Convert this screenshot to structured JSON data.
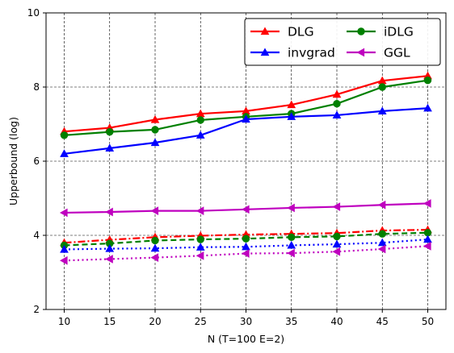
{
  "chart_data": {
    "type": "line",
    "title": "",
    "xlabel": "N (T=100 E=2)",
    "ylabel": "Upperbound (log)",
    "x": [
      10,
      15,
      20,
      25,
      30,
      35,
      40,
      45,
      50
    ],
    "xlim": [
      8,
      52
    ],
    "ylim": [
      2,
      10
    ],
    "yticks": [
      2,
      4,
      6,
      8,
      10
    ],
    "grid": true,
    "legend_position": "top-right",
    "series": [
      {
        "name": "DLG",
        "color": "#ff0000",
        "marker": "triangle-up",
        "linestyle": "solid",
        "values": [
          6.8,
          6.9,
          7.12,
          7.28,
          7.35,
          7.52,
          7.8,
          8.17,
          8.3
        ]
      },
      {
        "name": "iDLG",
        "color": "#008000",
        "marker": "circle",
        "linestyle": "solid",
        "values": [
          6.7,
          6.79,
          6.85,
          7.11,
          7.2,
          7.28,
          7.55,
          8.0,
          8.18
        ]
      },
      {
        "name": "invgrad",
        "color": "#0000ff",
        "marker": "triangle-up",
        "linestyle": "solid",
        "values": [
          6.2,
          6.35,
          6.5,
          6.7,
          7.13,
          7.2,
          7.24,
          7.35,
          7.43
        ]
      },
      {
        "name": "GGL",
        "color": "#bf00bf",
        "marker": "triangle-left",
        "linestyle": "solid",
        "values": [
          4.61,
          4.63,
          4.66,
          4.66,
          4.7,
          4.74,
          4.77,
          4.82,
          4.86
        ]
      },
      {
        "name": "",
        "color": "#ff0000",
        "marker": "triangle-up",
        "linestyle": "dashdot",
        "values": [
          3.8,
          3.88,
          3.95,
          3.99,
          4.02,
          4.04,
          4.06,
          4.13,
          4.15
        ]
      },
      {
        "name": "",
        "color": "#008000",
        "marker": "circle",
        "linestyle": "dashed",
        "values": [
          3.73,
          3.78,
          3.86,
          3.89,
          3.91,
          3.95,
          3.97,
          4.04,
          4.07
        ]
      },
      {
        "name": "",
        "color": "#0000ff",
        "marker": "triangle-up",
        "linestyle": "dotted",
        "values": [
          3.62,
          3.64,
          3.65,
          3.68,
          3.69,
          3.73,
          3.76,
          3.8,
          3.89
        ]
      },
      {
        "name": "",
        "color": "#bf00bf",
        "marker": "triangle-left",
        "linestyle": "dotted",
        "values": [
          3.32,
          3.36,
          3.4,
          3.45,
          3.51,
          3.52,
          3.56,
          3.63,
          3.71
        ]
      }
    ]
  }
}
